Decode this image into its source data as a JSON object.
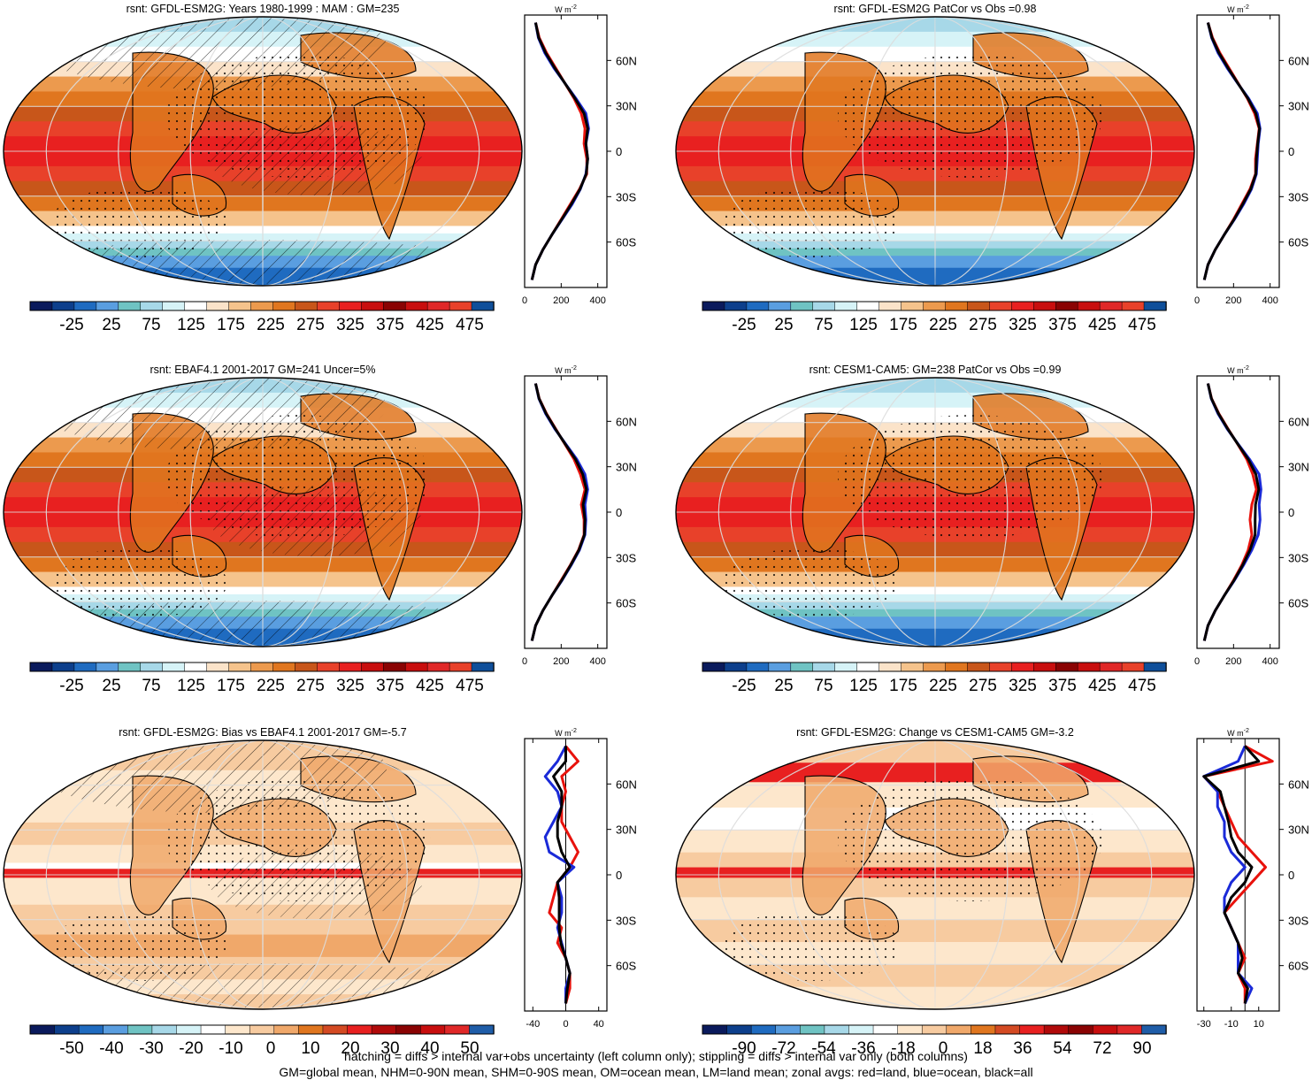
{
  "palettes": {
    "abs": [
      "#0a1a5c",
      "#0d3f8c",
      "#1f6bc0",
      "#5a9ee0",
      "#6fc3c3",
      "#a7d8e8",
      "#d6f3f7",
      "#ffffff",
      "#fbe3c9",
      "#f5c38c",
      "#ec9a4e",
      "#e0761f",
      "#c8561a",
      "#e8412a",
      "#e82020",
      "#c80e0e",
      "#8a0303",
      "#c80e0e",
      "#e02828",
      "#e8412a",
      "#0f4f9a"
    ],
    "diff": [
      "#0a1a5c",
      "#0d3f8c",
      "#1f6bc0",
      "#5a9ee0",
      "#6fc3c3",
      "#a7d8e8",
      "#d6f3f7",
      "#ffffff",
      "#fde7cc",
      "#f7cba0",
      "#f0a86a",
      "#e0761f",
      "#d44a23",
      "#e82020",
      "#b10a0a",
      "#8a0303",
      "#c80e0e",
      "#e02828",
      "#1f5da8"
    ]
  },
  "colorbars": {
    "abs": {
      "labels": [
        "-25",
        "25",
        "75",
        "125",
        "175",
        "225",
        "275",
        "325",
        "375",
        "425",
        "475"
      ]
    },
    "bias": {
      "labels": [
        "-50",
        "-40",
        "-30",
        "-20",
        "-10",
        "0",
        "10",
        "20",
        "30",
        "40",
        "50"
      ]
    },
    "change": {
      "labels": [
        "-90",
        "-72",
        "-54",
        "-36",
        "-18",
        "0",
        "18",
        "36",
        "54",
        "72",
        "90"
      ]
    }
  },
  "profile_axis": {
    "y_ticks": [
      "60N",
      "30N",
      "0",
      "30S",
      "60S"
    ],
    "unit": "W m",
    "unit_sup": "-2"
  },
  "footer": {
    "line1": "hatching = diffs > internal var+obs uncertainty (left column only); stippling = diffs > internal var only (both columns)",
    "line2": "GM=global mean, NHM=0-90N mean, SHM=0-90S mean, OM=ocean mean, LM=land mean; zonal avgs: red=land, blue=ocean, black=all"
  },
  "colors": {
    "land": "#e8120c",
    "ocean": "#1a2ad8",
    "all": "#000000"
  },
  "chart_data": [
    {
      "type": "heatmap",
      "map_type": "abs",
      "hatched": true,
      "title": "rsnt: GFDL-ESM2G: Years 1980-1999 : MAM : GM=235",
      "profile": {
        "type": "line",
        "xlim": [
          0,
          450
        ],
        "x_ticks": [
          "0",
          "200",
          "400"
        ],
        "lat": [
          85,
          75,
          65,
          55,
          45,
          35,
          25,
          15,
          5,
          -5,
          -15,
          -25,
          -35,
          -45,
          -55,
          -65,
          -75,
          -85
        ],
        "series": [
          {
            "name": "land",
            "values": [
              60,
              80,
              120,
              170,
              220,
              270,
              310,
              330,
              325,
              340,
              340,
              300,
              250,
              200,
              150,
              100,
              60,
              40
            ]
          },
          {
            "name": "ocean",
            "values": [
              60,
              75,
              110,
              160,
              220,
              280,
              335,
              350,
              335,
              345,
              335,
              305,
              260,
              205,
              150,
              100,
              60,
              40
            ]
          },
          {
            "name": "all",
            "values": [
              60,
              77,
              115,
              165,
              220,
              275,
              325,
              345,
              335,
              345,
              337,
              303,
              255,
              203,
              150,
              100,
              60,
              40
            ]
          }
        ]
      }
    },
    {
      "type": "heatmap",
      "map_type": "abs",
      "hatched": false,
      "title": "rsnt: GFDL-ESM2G PatCor vs Obs =0.98",
      "profile": {
        "type": "line",
        "xlim": [
          0,
          450
        ],
        "x_ticks": [
          "0",
          "200",
          "400"
        ],
        "lat": [
          85,
          75,
          65,
          55,
          45,
          35,
          25,
          15,
          5,
          -5,
          -15,
          -25,
          -35,
          -45,
          -55,
          -65,
          -75,
          -85
        ],
        "series": [
          {
            "name": "land",
            "values": [
              60,
              85,
              125,
              175,
              225,
              275,
              315,
              340,
              330,
              320,
              320,
              290,
              245,
              200,
              150,
              100,
              60,
              40
            ]
          },
          {
            "name": "ocean",
            "values": [
              60,
              80,
              115,
              165,
              222,
              282,
              330,
              345,
              335,
              330,
              325,
              298,
              255,
              205,
              150,
              100,
              60,
              40
            ]
          },
          {
            "name": "all",
            "values": [
              60,
              82,
              120,
              170,
              223,
              278,
              322,
              342,
              332,
              325,
              322,
              294,
              250,
              203,
              150,
              100,
              60,
              40
            ]
          }
        ]
      }
    },
    {
      "type": "heatmap",
      "map_type": "abs",
      "hatched": true,
      "title": "rsnt: EBAF4.1 2001-2017 GM=241 Uncer=5%",
      "profile": {
        "type": "line",
        "xlim": [
          0,
          450
        ],
        "x_ticks": [
          "0",
          "200",
          "400"
        ],
        "lat": [
          85,
          75,
          65,
          55,
          45,
          35,
          25,
          15,
          5,
          -5,
          -15,
          -25,
          -35,
          -45,
          -55,
          -65,
          -75,
          -85
        ],
        "series": [
          {
            "name": "land",
            "values": [
              60,
              80,
              120,
              170,
              220,
              270,
              305,
              330,
              310,
              325,
              325,
              295,
              250,
              200,
              150,
              100,
              60,
              40
            ]
          },
          {
            "name": "ocean",
            "values": [
              60,
              78,
              115,
              165,
              225,
              285,
              330,
              345,
              330,
              335,
              330,
              300,
              255,
              205,
              150,
              100,
              60,
              40
            ]
          },
          {
            "name": "all",
            "values": [
              60,
              79,
              118,
              168,
              222,
              278,
              318,
              338,
              320,
              330,
              327,
              297,
              252,
              203,
              150,
              100,
              60,
              40
            ]
          }
        ]
      }
    },
    {
      "type": "heatmap",
      "map_type": "abs",
      "hatched": false,
      "title": "rsnt: CESM1-CAM5: GM=238 PatCor vs Obs =0.99",
      "profile": {
        "type": "line",
        "xlim": [
          0,
          450
        ],
        "x_ticks": [
          "0",
          "200",
          "400"
        ],
        "lat": [
          85,
          75,
          65,
          55,
          45,
          35,
          25,
          15,
          5,
          -5,
          -15,
          -25,
          -35,
          -45,
          -55,
          -65,
          -75,
          -85
        ],
        "series": [
          {
            "name": "land",
            "values": [
              60,
              80,
              120,
              170,
              222,
              272,
              305,
              325,
              300,
              290,
              300,
              280,
              245,
              200,
              150,
              100,
              60,
              40
            ]
          },
          {
            "name": "ocean",
            "values": [
              60,
              78,
              115,
              165,
              225,
              287,
              340,
              350,
              340,
              345,
              335,
              300,
              255,
              205,
              150,
              100,
              60,
              40
            ]
          },
          {
            "name": "all",
            "values": [
              60,
              79,
              118,
              168,
              223,
              280,
              322,
              338,
              320,
              318,
              318,
              290,
              250,
              203,
              150,
              100,
              60,
              40
            ]
          }
        ]
      }
    },
    {
      "type": "heatmap",
      "map_type": "bias",
      "hatched": true,
      "title": "rsnt: GFDL-ESM2G: Bias vs EBAF4.1 2001-2017 GM=-5.7",
      "profile": {
        "type": "line",
        "xlim": [
          -50,
          50
        ],
        "x_ticks": [
          "-40",
          "0",
          "40"
        ],
        "lat": [
          85,
          75,
          65,
          55,
          45,
          35,
          25,
          15,
          5,
          -5,
          -15,
          -25,
          -35,
          -45,
          -55,
          -65,
          -75,
          -85
        ],
        "series": [
          {
            "name": "land",
            "values": [
              0,
              15,
              -5,
              0,
              -5,
              -5,
              5,
              15,
              5,
              -10,
              -15,
              -20,
              -5,
              -10,
              0,
              5,
              5,
              0
            ]
          },
          {
            "name": "ocean",
            "values": [
              0,
              -10,
              -25,
              -10,
              -5,
              -15,
              -25,
              -20,
              10,
              -10,
              -5,
              -5,
              -10,
              -5,
              0,
              5,
              0,
              0
            ]
          },
          {
            "name": "all",
            "values": [
              0,
              0,
              -15,
              -5,
              -5,
              -10,
              -10,
              -5,
              5,
              -10,
              -8,
              -8,
              -8,
              -6,
              0,
              5,
              2,
              0
            ]
          }
        ]
      }
    },
    {
      "type": "heatmap",
      "map_type": "change",
      "hatched": false,
      "title": "rsnt: GFDL-ESM2G: Change vs CESM1-CAM5 GM=-3.2",
      "profile": {
        "type": "line",
        "xlim": [
          -35,
          25
        ],
        "x_ticks": [
          "-30",
          "-10",
          "10"
        ],
        "lat": [
          85,
          75,
          65,
          55,
          45,
          35,
          25,
          15,
          5,
          -5,
          -15,
          -25,
          -35,
          -45,
          -55,
          -65,
          -75,
          -85
        ],
        "series": [
          {
            "name": "land",
            "values": [
              0,
              20,
              -30,
              -20,
              -15,
              -10,
              -5,
              5,
              15,
              5,
              -5,
              -15,
              -10,
              -5,
              0,
              -5,
              0,
              0
            ]
          },
          {
            "name": "ocean",
            "values": [
              0,
              -5,
              -30,
              -20,
              -20,
              -15,
              -15,
              -10,
              0,
              -10,
              -15,
              -15,
              -10,
              -5,
              -5,
              -5,
              5,
              0
            ]
          },
          {
            "name": "all",
            "values": [
              0,
              10,
              -30,
              -18,
              -15,
              -12,
              -10,
              -5,
              5,
              0,
              -10,
              -15,
              -10,
              -5,
              -2,
              -5,
              2,
              0
            ]
          }
        ]
      }
    }
  ]
}
